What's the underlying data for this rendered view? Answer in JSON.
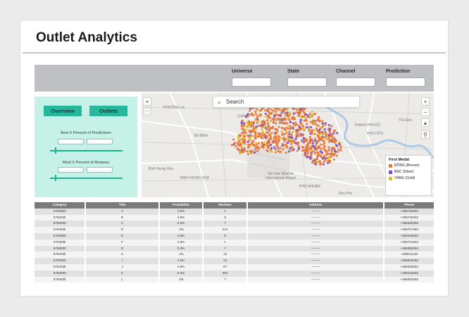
{
  "header": {
    "title": "Outlet Analytics"
  },
  "filters": [
    {
      "label": "Universe",
      "value": ""
    },
    {
      "label": "State",
      "value": ""
    },
    {
      "label": "Channel",
      "value": ""
    },
    {
      "label": "Prediction",
      "value": ""
    }
  ],
  "controls": {
    "overview_label": "Overview",
    "outlets_label": "Outlets",
    "best_percent_label": "Best X Percent of Predictions",
    "most_reviews_label": "Most X Percent of Reviews"
  },
  "map": {
    "search_placeholder": "Search",
    "airport_label": "Tan Son Nhat Air\nInternational Airport",
    "place_labels": [
      "Quận 12",
      "PHƯỜNG 14",
      "Bà Điểm",
      "Phú Thọ Hòa",
      "Bình Hưng Hòa",
      "BÌNH HƯNG HÒA",
      "Quận 7",
      "Thủ Đức",
      "THẠNH PHƯỚC",
      "Thủ Đức",
      "PHÚ HỮU",
      "PHÚ NHUẬN",
      "Kho Phò",
      "Quận 5",
      "Quận 6",
      "Bình Tân"
    ],
    "legend": {
      "title": "First Medal",
      "items": [
        {
          "label": "ĐỒNG (Bronze)",
          "color": "#e8743b"
        },
        {
          "label": "BẠC (Silver)",
          "color": "#7b4fc2"
        },
        {
          "label": "VÀNG (Gold)",
          "color": "#e0c020"
        }
      ]
    }
  },
  "table": {
    "columns": [
      "Category",
      "Title",
      "Probability",
      "Reviews",
      "Address",
      "Phone"
    ],
    "rows": [
      [
        "5790000",
        "A",
        "4.5%",
        "1",
        "--------",
        "+498745362"
      ],
      [
        "678403k",
        "B",
        "4.8%",
        "6",
        "--------",
        "+498745362"
      ],
      [
        "5790000",
        "C",
        "0.3%",
        "7",
        "--------",
        "+498465362"
      ],
      [
        "678403k",
        "D",
        ".3%",
        "214",
        "--------",
        "+498767362"
      ],
      [
        "5790000",
        "E",
        "4.5%",
        "5",
        "--------",
        "+492245362"
      ],
      [
        "678403k",
        "F",
        "4.8%",
        "1",
        "--------",
        "+498744362"
      ],
      [
        "5790000",
        "G",
        "0.3%",
        "7",
        "--------",
        "+498085362"
      ],
      [
        "678403k",
        "H",
        ".3%",
        "13",
        "--------",
        "+498111162"
      ],
      [
        "5790000",
        "I",
        "4.5%",
        "24",
        "--------",
        "+498545362"
      ],
      [
        "678403k",
        "J",
        "4.8%",
        "67",
        "--------",
        "+498335362"
      ],
      [
        "5790000",
        "K",
        "0.3%",
        "392",
        "--------",
        "+498105362"
      ],
      [
        "678403k",
        "L",
        ".3%",
        "7",
        "--------",
        "+498000362"
      ]
    ]
  }
}
